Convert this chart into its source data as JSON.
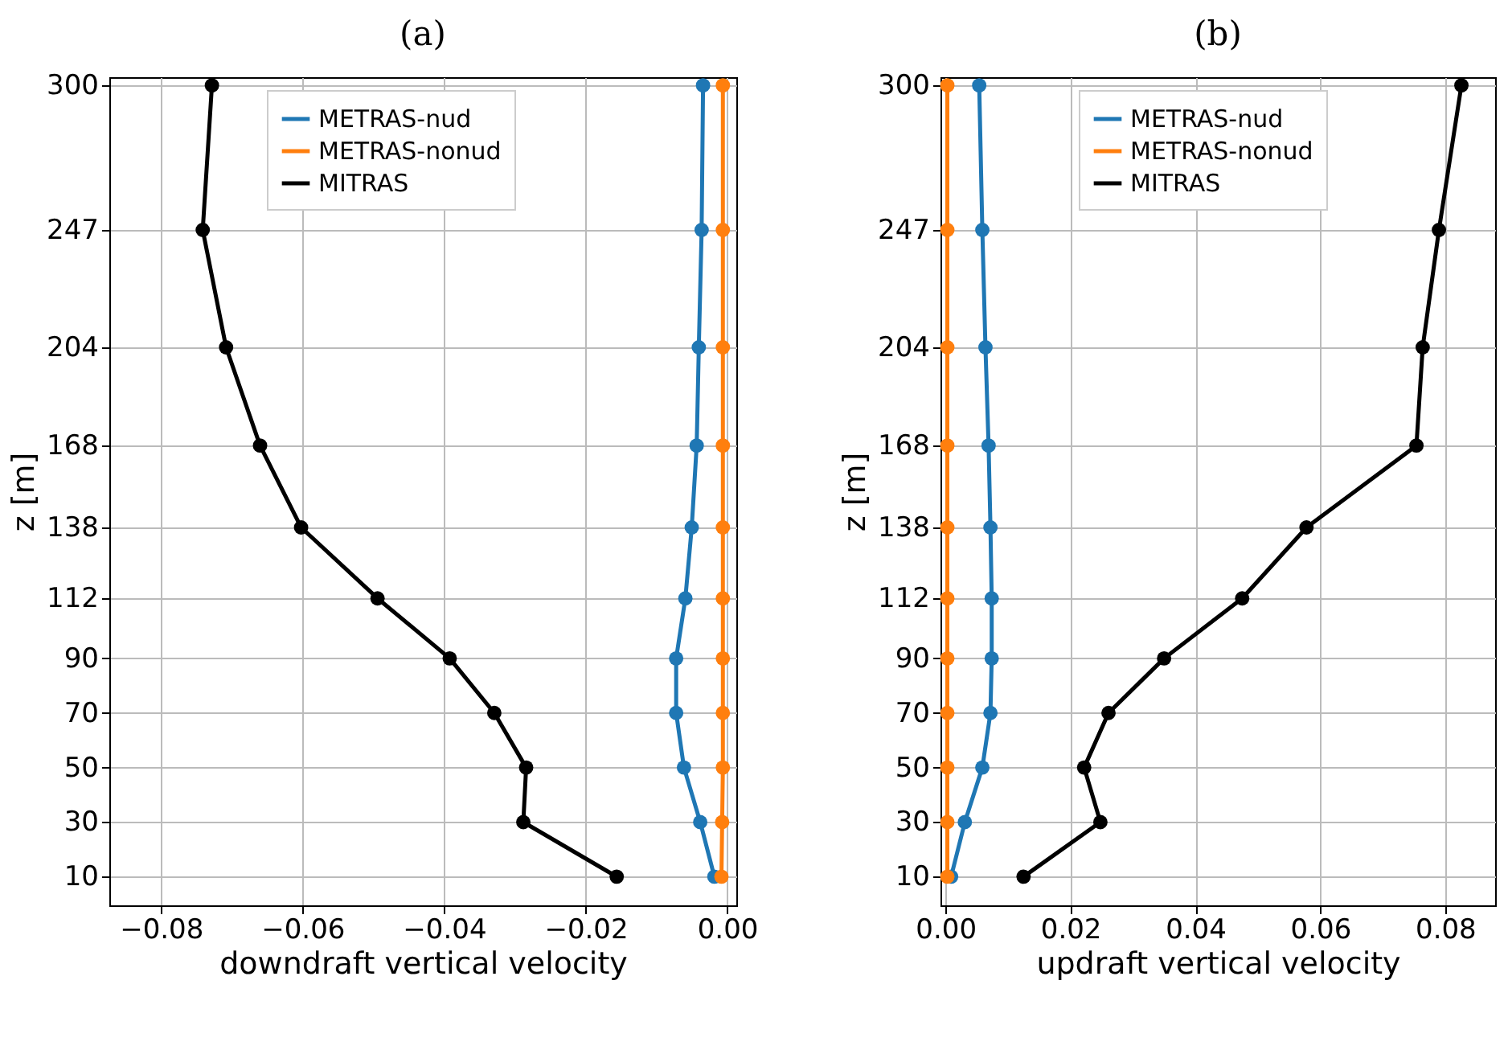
{
  "chart_data": [
    {
      "type": "line",
      "title": "(a)",
      "xlabel": "downdraft vertical velocity",
      "ylabel": "z [m]",
      "xlim": [
        -0.0873,
        0.0013
      ],
      "ylim": [
        -0.5,
        303
      ],
      "xticks": [
        {
          "value": -0.08,
          "label": "−0.08"
        },
        {
          "value": -0.06,
          "label": "−0.06"
        },
        {
          "value": -0.04,
          "label": "−0.04"
        },
        {
          "value": -0.02,
          "label": "−0.02"
        },
        {
          "value": 0,
          "label": "0.00"
        }
      ],
      "yticks": [
        10,
        30,
        50,
        70,
        90,
        112,
        138,
        168,
        204,
        247,
        300
      ],
      "grid": true,
      "legend": "top",
      "marker": "circle",
      "line_style": "solid",
      "series": [
        {
          "name": "METRAS-nud",
          "color": "#1f77b4",
          "x": [
            -0.0018,
            -0.0038,
            -0.0061,
            -0.0072,
            -0.0072,
            -0.0059,
            -0.005,
            -0.0043,
            -0.004,
            -0.0036,
            -0.0034
          ],
          "values": [
            10,
            30,
            50,
            70,
            90,
            112,
            138,
            168,
            204,
            247,
            300
          ]
        },
        {
          "name": "METRAS-nonud",
          "color": "#ff7f0e",
          "x": [
            -0.0008,
            -0.0007,
            -0.0006,
            -0.0006,
            -0.0006,
            -0.0006,
            -0.0006,
            -0.0006,
            -0.0006,
            -0.0006,
            -0.0006
          ],
          "values": [
            10,
            30,
            50,
            70,
            90,
            112,
            138,
            168,
            204,
            247,
            300
          ]
        },
        {
          "name": "MITRAS",
          "color": "#000000",
          "x": [
            -0.0156,
            -0.0288,
            -0.0284,
            -0.0329,
            -0.0392,
            -0.0494,
            -0.0602,
            -0.066,
            -0.0708,
            -0.0741,
            -0.0728
          ],
          "values": [
            10,
            30,
            50,
            70,
            90,
            112,
            138,
            168,
            204,
            247,
            300
          ]
        }
      ]
    },
    {
      "type": "line",
      "title": "(b)",
      "xlabel": "updraft vertical velocity",
      "ylabel": "z [m]",
      "xlim": [
        -0.0008,
        0.088
      ],
      "ylim": [
        -0.5,
        303
      ],
      "xticks": [
        {
          "value": 0,
          "label": "0.00"
        },
        {
          "value": 0.02,
          "label": "0.02"
        },
        {
          "value": 0.04,
          "label": "0.04"
        },
        {
          "value": 0.06,
          "label": "0.06"
        },
        {
          "value": 0.08,
          "label": "0.08"
        }
      ],
      "yticks": [
        10,
        30,
        50,
        70,
        90,
        112,
        138,
        168,
        204,
        247,
        300
      ],
      "grid": true,
      "legend": "top",
      "marker": "circle",
      "line_style": "solid",
      "series": [
        {
          "name": "METRAS-nud",
          "color": "#1f77b4",
          "x": [
            0.0009,
            0.0031,
            0.0059,
            0.0072,
            0.0074,
            0.0074,
            0.0072,
            0.0069,
            0.0064,
            0.0059,
            0.0054
          ],
          "values": [
            10,
            30,
            50,
            70,
            90,
            112,
            138,
            168,
            204,
            247,
            300
          ]
        },
        {
          "name": "METRAS-nonud",
          "color": "#ff7f0e",
          "x": [
            0.0003,
            0.0003,
            0.0003,
            0.0003,
            0.0003,
            0.0003,
            0.0003,
            0.0003,
            0.0003,
            0.0003,
            0.0003
          ],
          "values": [
            10,
            30,
            50,
            70,
            90,
            112,
            138,
            168,
            204,
            247,
            300
          ]
        },
        {
          "name": "MITRAS",
          "color": "#000000",
          "x": [
            0.0125,
            0.0248,
            0.0222,
            0.0261,
            0.035,
            0.0475,
            0.0578,
            0.0754,
            0.0764,
            0.079,
            0.0826
          ],
          "values": [
            10,
            30,
            50,
            70,
            90,
            112,
            138,
            168,
            204,
            247,
            300
          ]
        }
      ]
    }
  ]
}
